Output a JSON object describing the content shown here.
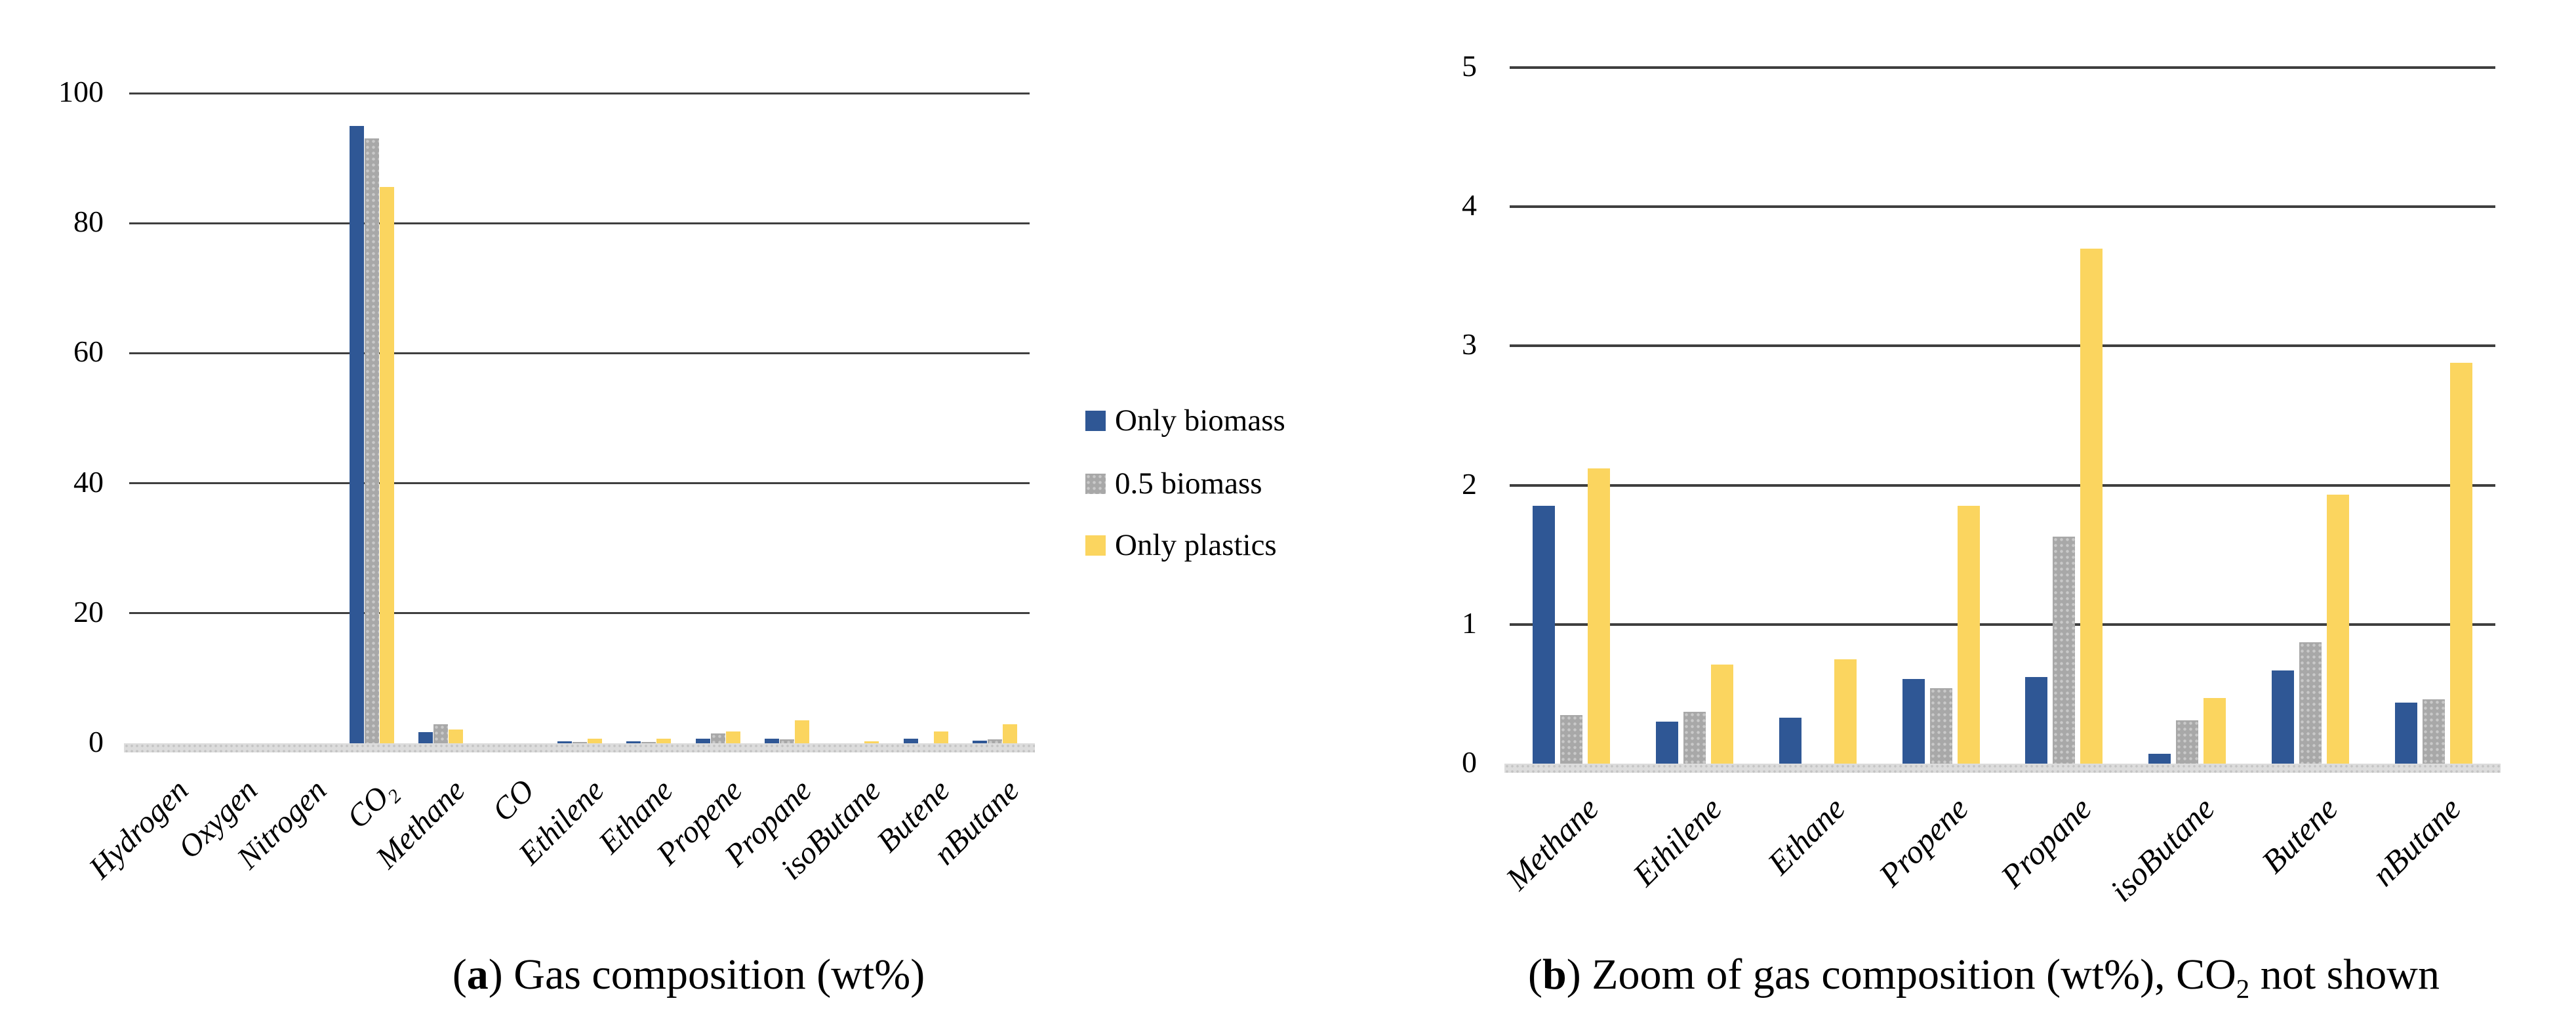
{
  "colors": {
    "biomass_blue": "#2F5795",
    "half_biomass_gray": "#A8A8A8",
    "plastics_yellow": "#FBD55F",
    "gridline": "#3F3F3F",
    "axis_strip": "#DCDCDC"
  },
  "legend": {
    "items": [
      {
        "label": "Only biomass",
        "color": "#2F5795",
        "pattern": "solid"
      },
      {
        "label": "0.5 biomass",
        "color": "#A8A8A8",
        "pattern": "dots"
      },
      {
        "label": "Only plastics",
        "color": "#FBD55F",
        "pattern": "solid"
      }
    ]
  },
  "captions": {
    "a": {
      "letter": "a",
      "text": ") Gas composition (wt%)",
      "open": "("
    },
    "b": {
      "letter": "b",
      "text": ") Zoom of gas composition (wt%), CO₂ not shown",
      "open": "("
    }
  },
  "chart_data": [
    {
      "id": "a",
      "type": "bar",
      "title": "(a) Gas composition (wt%)",
      "categories": [
        "Hydrogen",
        "Oxygen",
        "Nitrogen",
        "CO₂",
        "Methane",
        "CO",
        "Ethilene",
        "Ethane",
        "Propene",
        "Propane",
        "isoButane",
        "Butene",
        "nButane"
      ],
      "series": [
        {
          "name": "Only biomass",
          "values": [
            0,
            0,
            0,
            95,
            1.7,
            0,
            0.33,
            0.33,
            0.67,
            0.74,
            0,
            0.74,
            0.4
          ]
        },
        {
          "name": "0.5 biomass",
          "values": [
            0,
            0,
            0,
            93,
            2.9,
            0,
            0.25,
            0.25,
            1.47,
            0.63,
            0,
            0,
            0.57
          ]
        },
        {
          "name": "Only plastics",
          "values": [
            0,
            0,
            0,
            85.6,
            2.1,
            0,
            0.75,
            0.75,
            1.81,
            3.52,
            0.3,
            1.81,
            2.92
          ]
        }
      ],
      "ylim": [
        0,
        100
      ],
      "yticks": [
        0,
        20,
        40,
        60,
        80,
        100
      ],
      "grid": true,
      "legend_position": "right-of-plot"
    },
    {
      "id": "b",
      "type": "bar",
      "title": "(b) Zoom of gas composition (wt%), CO₂ not shown",
      "categories": [
        "Methane",
        "Ethilene",
        "Ethane",
        "Propene",
        "Propane",
        "isoButane",
        "Butene",
        "nButane"
      ],
      "series": [
        {
          "name": "Only biomass",
          "values": [
            1.85,
            0.3,
            0.33,
            0.61,
            0.62,
            0.07,
            0.67,
            0.44
          ]
        },
        {
          "name": "0.5 biomass",
          "values": [
            0.35,
            0.37,
            0,
            0.54,
            1.63,
            0.31,
            0.87,
            0.46
          ]
        },
        {
          "name": "Only plastics",
          "values": [
            2.12,
            0.71,
            0.75,
            1.85,
            3.7,
            0.47,
            1.93,
            2.88
          ]
        }
      ],
      "ylim": [
        0,
        5
      ],
      "yticks": [
        0,
        1,
        2,
        3,
        4,
        5
      ],
      "grid": true,
      "legend_position": "none"
    }
  ]
}
